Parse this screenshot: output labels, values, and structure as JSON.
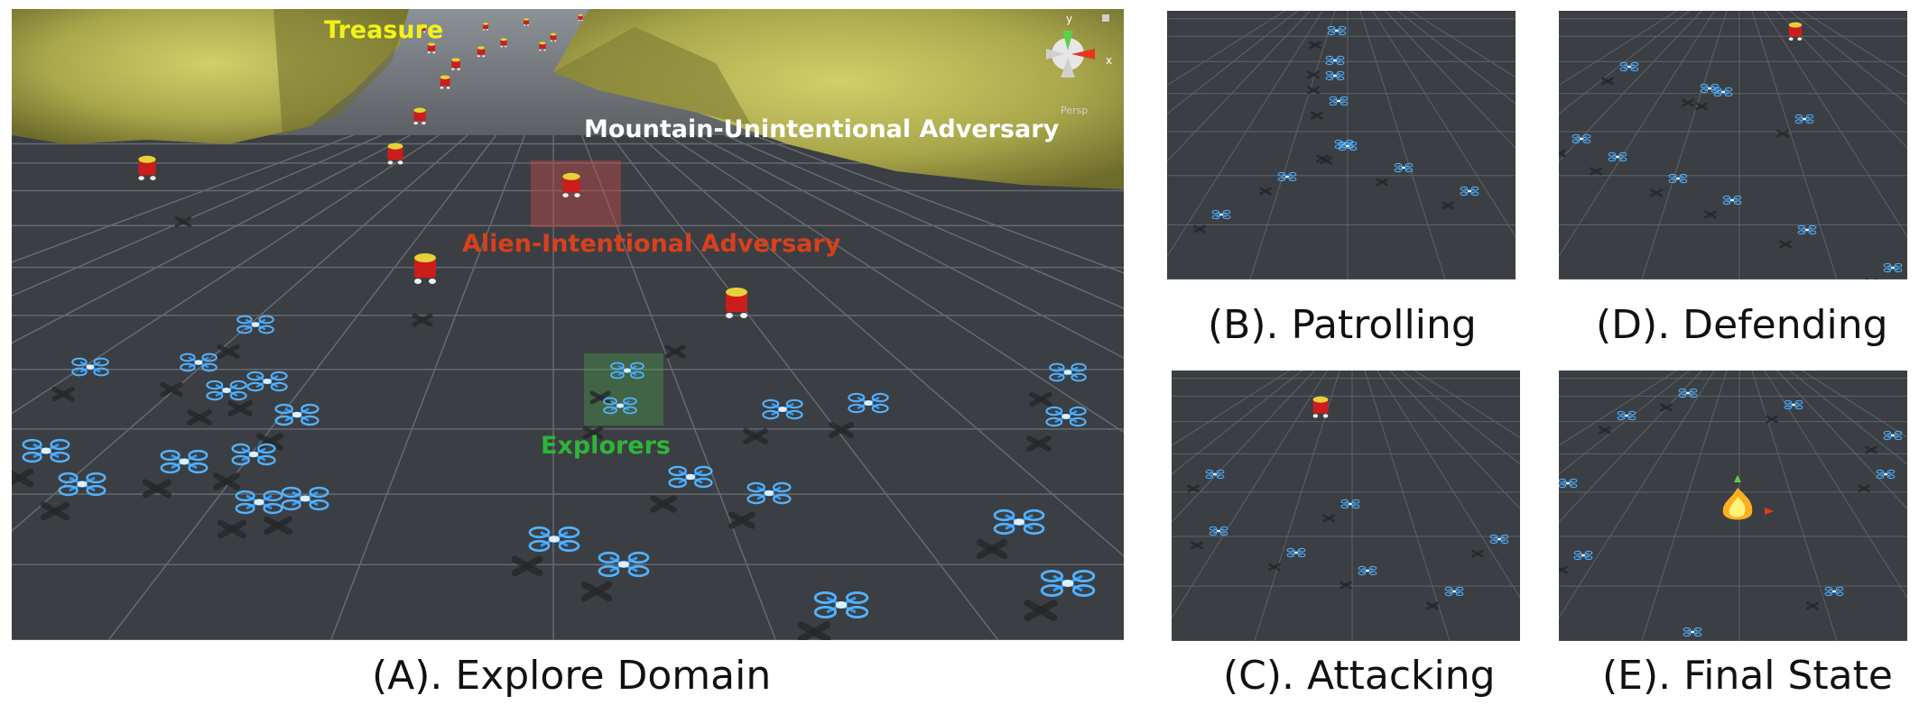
{
  "panels": {
    "a": {
      "caption": "(A). Explore Domain",
      "labels": {
        "treasure": "Treasure",
        "mountain": "Mountain-Unintentional Adversary",
        "alien": "Alien-Intentional Adversary",
        "explorers": "Explorers"
      },
      "gizmo": {
        "y": "y",
        "x": "x",
        "persp": "Persp"
      }
    },
    "b": {
      "caption": "(B). Patrolling"
    },
    "c": {
      "caption": "(C). Attacking"
    },
    "d": {
      "caption": "(D). Defending"
    },
    "e": {
      "caption": "(E). Final State"
    }
  },
  "colors": {
    "ground": "#3b3f43",
    "grid": "#6a6f74",
    "mountain": "#a8a64a",
    "treasure_label": "#f2f21a",
    "mountain_label": "#ffffff",
    "alien_label": "#d8401c",
    "explorer_label": "#2fb43a",
    "drone": "#2f9bff",
    "alien": "#cc1d1d"
  },
  "icons": {
    "drone": "quadcopter-drone-icon",
    "alien": "red-alien-robot-icon",
    "treasure": "treasure-fire-icon",
    "gizmo": "axis-gizmo-icon"
  }
}
